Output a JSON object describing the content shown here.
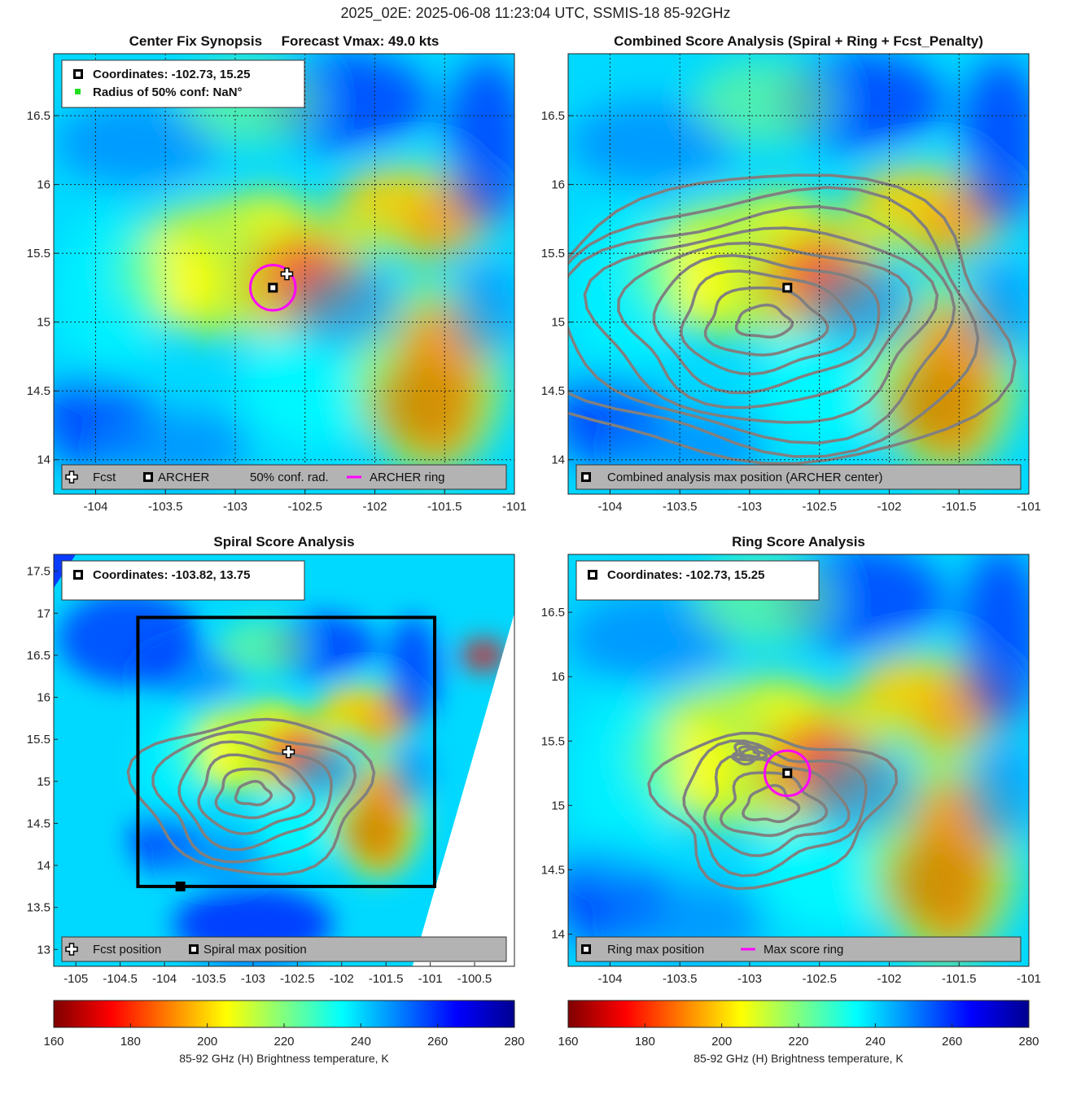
{
  "figure": {
    "suptitle": "2025_02E: 2025-06-08 11:23:04 UTC, SSMIS-18 85-92GHz",
    "colormap": [
      "#7f0000",
      "#ff0000",
      "#ff8000",
      "#ffff00",
      "#80ff80",
      "#00ffff",
      "#0080ff",
      "#0000ff",
      "#00008f"
    ]
  },
  "chart_data": [
    {
      "type": "heatmap",
      "title": "Center Fix Synopsis     Forecast Vmax: 49.0 kts",
      "xlim": [
        -104.3,
        -101
      ],
      "ylim": [
        13.75,
        16.95
      ],
      "xticks": [
        -104,
        -103.5,
        -103,
        -102.5,
        -102,
        -101.5,
        -101
      ],
      "yticks": [
        14,
        14.5,
        15,
        15.5,
        16,
        16.5
      ],
      "grid": true,
      "info": [
        "Coordinates: -102.73, 15.25",
        "Radius of 50% conf: NaN°"
      ],
      "legend": [
        "Fcst",
        "ARCHER",
        "50% conf. rad.",
        "ARCHER ring"
      ],
      "legend_position": "bottom",
      "archer_center": [
        -102.73,
        15.25
      ],
      "forecast_position": [
        -102.63,
        15.35
      ],
      "archer_ring_radius_deg": 0.15
    },
    {
      "type": "heatmap",
      "title": "Combined Score Analysis (Spiral + Ring + Fcst_Penalty)",
      "xlim": [
        -104.3,
        -101
      ],
      "ylim": [
        13.75,
        16.95
      ],
      "xticks": [
        -104,
        -103.5,
        -103,
        -102.5,
        -102,
        -101.5,
        -101
      ],
      "yticks": [
        14,
        14.5,
        15,
        15.5,
        16,
        16.5
      ],
      "grid": true,
      "legend": [
        "Combined analysis max position (ARCHER center)"
      ],
      "legend_position": "bottom",
      "max_position": [
        -102.73,
        15.25
      ]
    },
    {
      "type": "heatmap",
      "title": "Spiral Score Analysis",
      "xlim": [
        -105.25,
        -100.05
      ],
      "ylim": [
        12.8,
        17.7
      ],
      "xticks": [
        -105,
        -104.5,
        -104,
        -103.5,
        -103,
        -102.5,
        -102,
        -101.5,
        -101,
        -100.5
      ],
      "yticks": [
        13,
        13.5,
        14,
        14.5,
        15,
        15.5,
        16,
        16.5,
        17,
        17.5
      ],
      "grid": false,
      "info": [
        "Coordinates: -103.82, 13.75"
      ],
      "legend": [
        "Fcst position",
        "Spiral max position"
      ],
      "legend_position": "bottom",
      "spiral_max_position": [
        -103.82,
        13.75
      ],
      "forecast_position": [
        -102.6,
        15.35
      ],
      "search_box": {
        "lon": [
          -104.3,
          -100.95
        ],
        "lat": [
          13.75,
          16.95
        ]
      }
    },
    {
      "type": "heatmap",
      "title": "Ring Score Analysis",
      "xlim": [
        -104.3,
        -101
      ],
      "ylim": [
        13.75,
        16.95
      ],
      "xticks": [
        -104,
        -103.5,
        -103,
        -102.5,
        -102,
        -101.5,
        -101
      ],
      "yticks": [
        14,
        14.5,
        15,
        15.5,
        16,
        16.5
      ],
      "grid": false,
      "info": [
        "Coordinates: -102.73, 15.25"
      ],
      "legend": [
        "Ring max position",
        "Max score ring"
      ],
      "legend_position": "bottom",
      "ring_max_position": [
        -102.73,
        15.25
      ],
      "max_score_ring_radius_deg": 0.15
    },
    {
      "type": "colorbar",
      "clim": [
        160,
        280
      ],
      "ticks": [
        160,
        180,
        200,
        220,
        240,
        260,
        280
      ],
      "label": "85-92 GHz (H) Brightness temperature, K"
    }
  ]
}
